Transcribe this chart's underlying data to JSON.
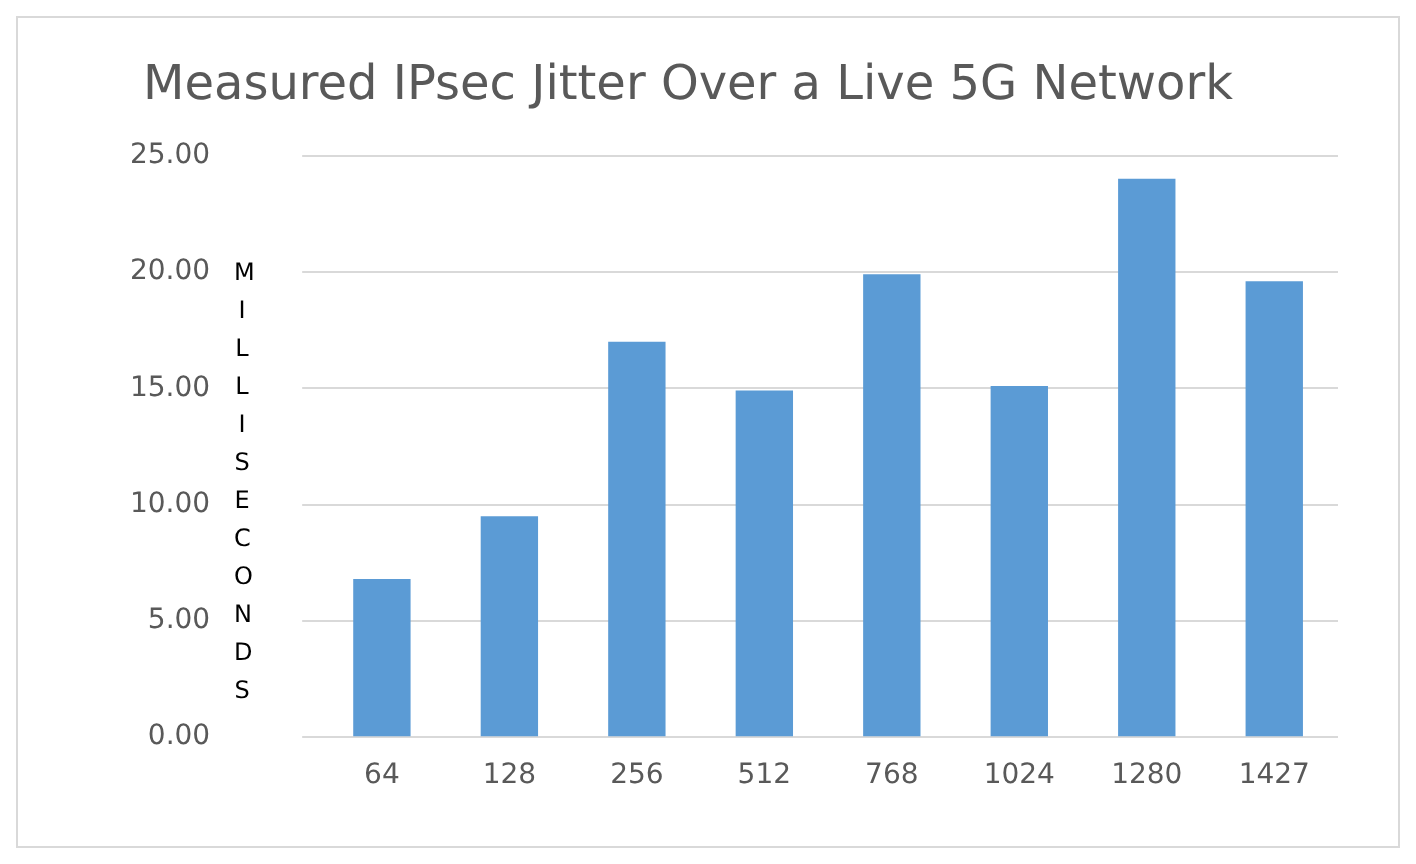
{
  "chart_data": {
    "type": "bar",
    "title": "Measured IPsec Jitter Over a Live 5G Network",
    "ylabel": "MILLISECONDS",
    "categories": [
      "64",
      "128",
      "256",
      "512",
      "768",
      "1024",
      "1280",
      "1427"
    ],
    "values": [
      6.8,
      9.5,
      17.0,
      14.9,
      19.9,
      15.1,
      24.0,
      19.6
    ],
    "color": "#5b9bd5",
    "ylim": [
      0,
      25
    ],
    "yticks": [
      {
        "value": 0,
        "label": "0.00"
      },
      {
        "value": 5,
        "label": "5.00"
      },
      {
        "value": 10,
        "label": "10.00"
      },
      {
        "value": 15,
        "label": "15.00"
      },
      {
        "value": 20,
        "label": "20.00"
      },
      {
        "value": 25,
        "label": "25.00"
      }
    ],
    "grid": "y"
  }
}
